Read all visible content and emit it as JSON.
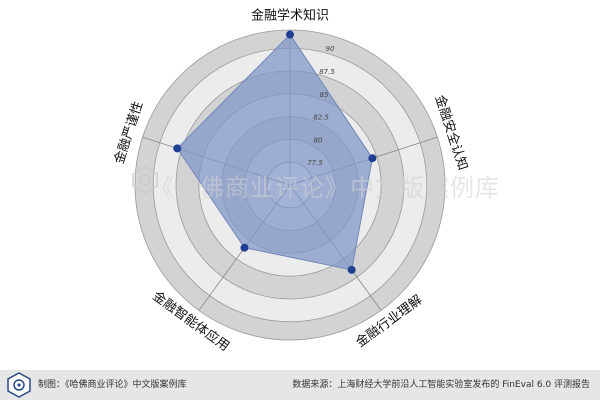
{
  "chart_data": {
    "type": "radar",
    "axes": [
      "金融学术知识",
      "金融安全认知",
      "金融行业理解",
      "金融智能体应用",
      "金融严谨性"
    ],
    "values": [
      91.5,
      84.5,
      86.5,
      83.5,
      88.0
    ],
    "rlim": [
      75,
      92
    ],
    "ticks": [
      77.5,
      80,
      82.5,
      85,
      87.5,
      90
    ],
    "tick_labels": [
      "77.5",
      "80",
      "82.5",
      "85",
      "87.5",
      "90"
    ],
    "fill_color": "#7f96c8",
    "point_color": "#1f3f93",
    "grid": true
  },
  "watermark": "《哈佛商业评论》中文版案例库",
  "footer": {
    "left_text": "制图：《哈佛商业评论》中文版案例库",
    "right_text": "数据来源：上海财经大学前沿人工智能实验室发布的 FinEval 6.0 评测报告"
  },
  "colors": {
    "ring_dark": "#d3d3d3",
    "ring_light": "#ececec",
    "footer_bg": "#e6e6e6"
  }
}
